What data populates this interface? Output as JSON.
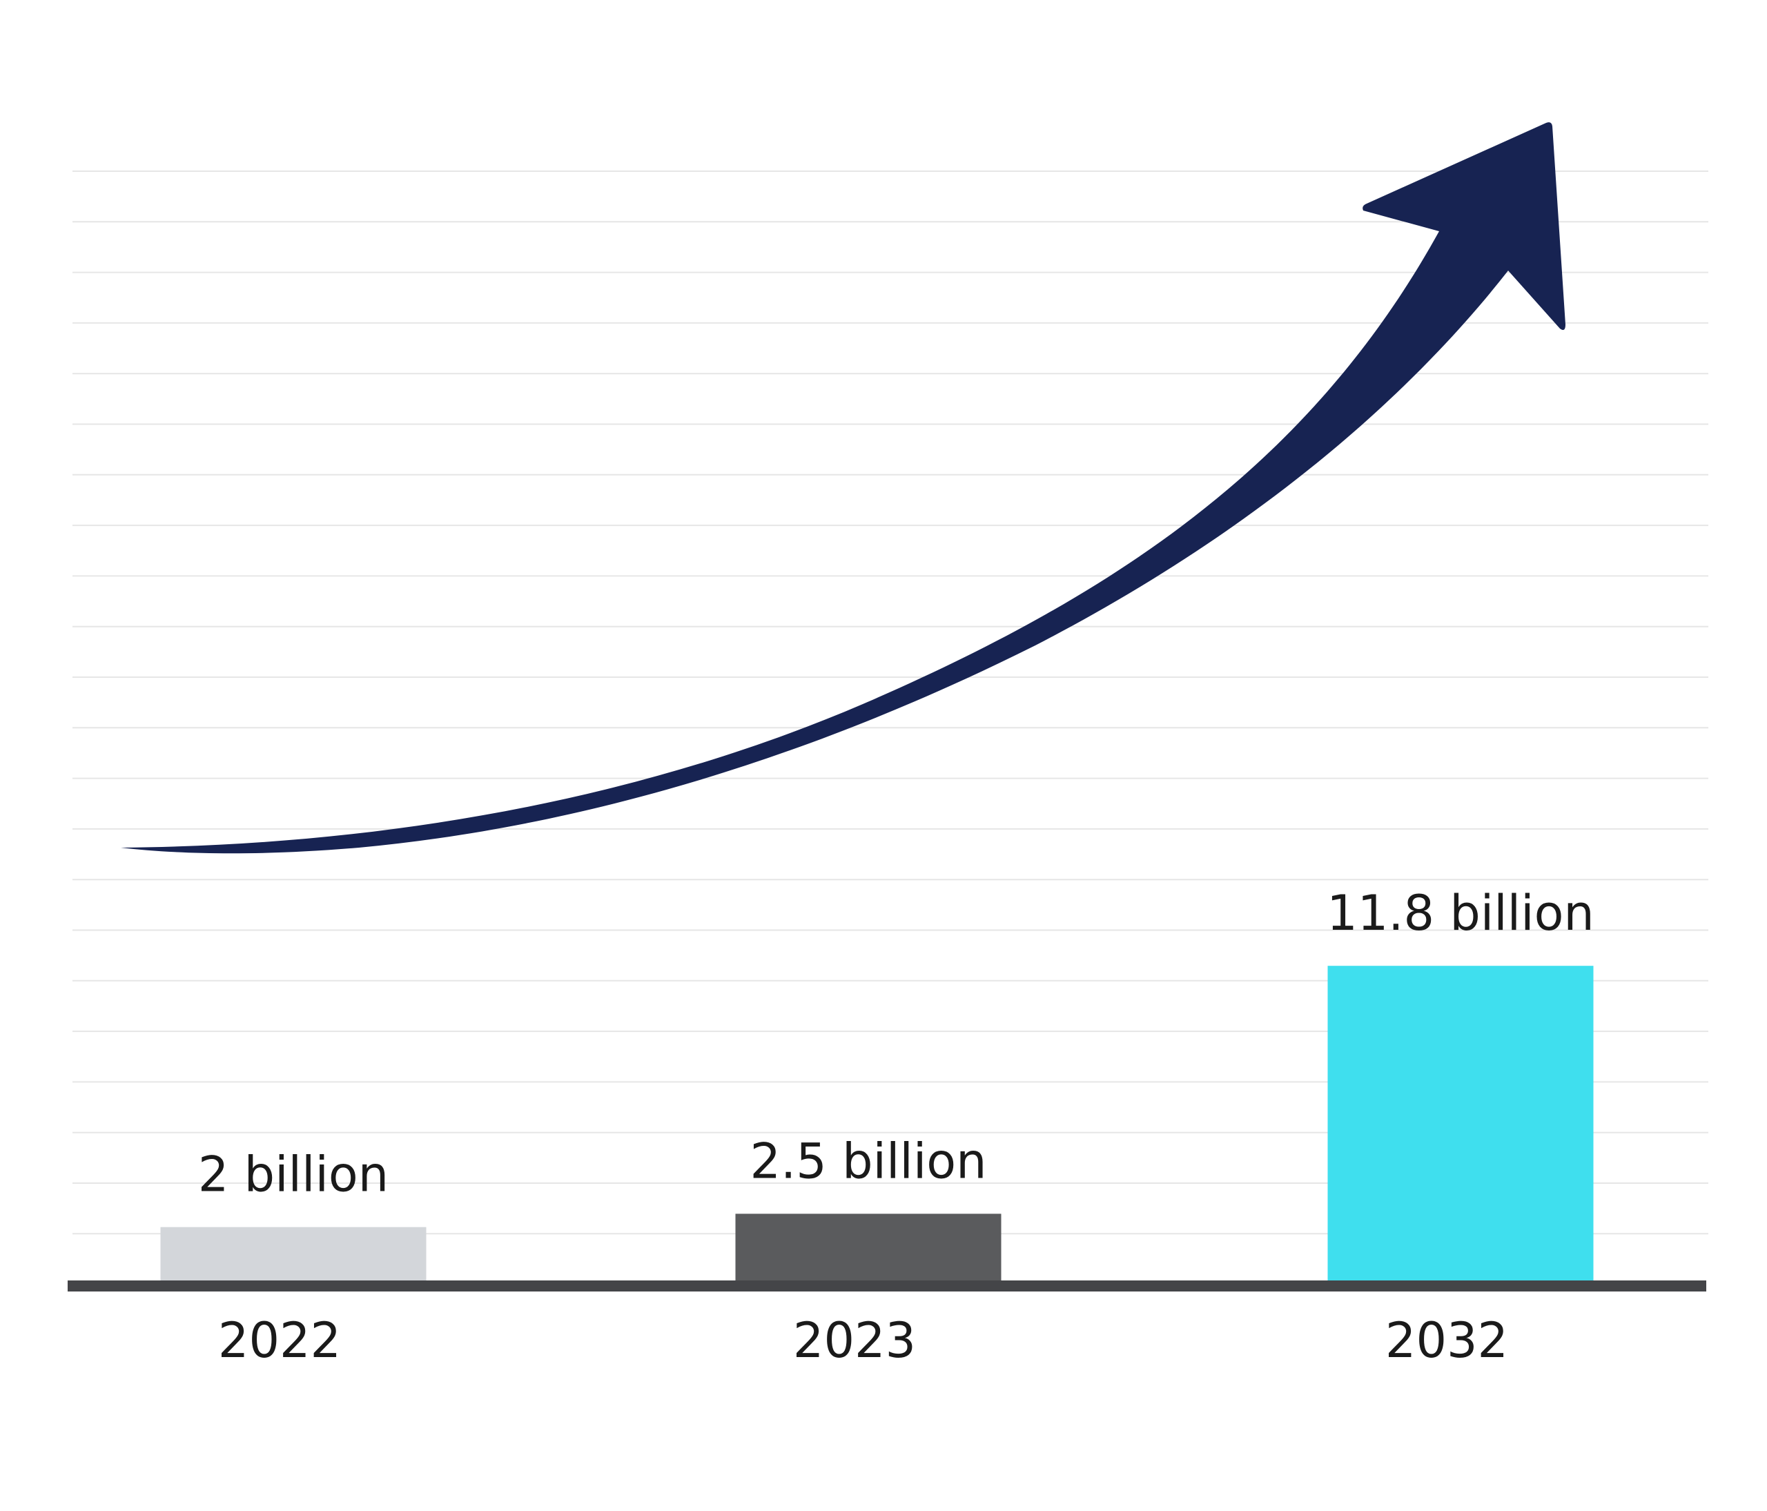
{
  "chart_data": {
    "type": "bar",
    "categories": [
      "2022",
      "2023",
      "2032"
    ],
    "values": [
      2,
      2.5,
      11.8
    ],
    "value_labels": [
      "2 billion",
      "2.5 billion",
      "11.8 billion"
    ],
    "bar_colors": [
      "#d3d6da",
      "#5a5b5d",
      "#3fdfee"
    ],
    "axis_color": "#444548",
    "grid_color": "#e6e6e6",
    "arrow_color": "#172352",
    "title": "",
    "xlabel": "",
    "ylabel": "",
    "grid": true,
    "trend_arrow": "rising curve from left to upper-right"
  }
}
